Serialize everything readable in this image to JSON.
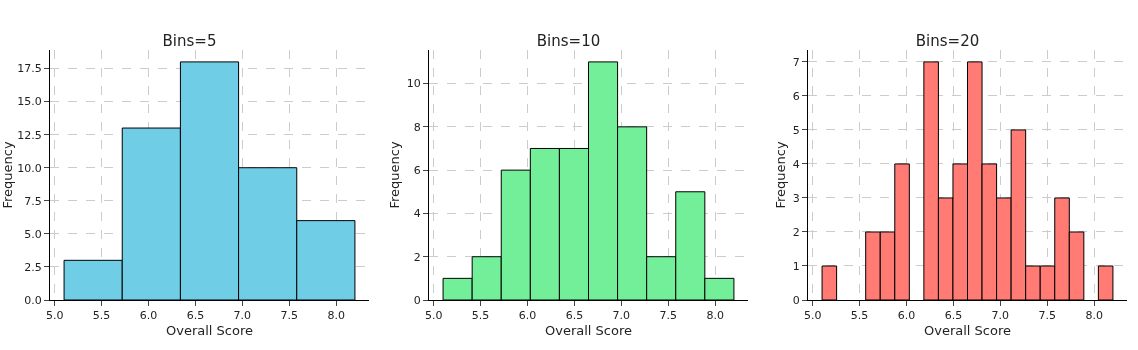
{
  "chart_data": [
    {
      "type": "histogram",
      "title": "Bins=5",
      "xlabel": "Overall Score",
      "ylabel": "Frequency",
      "bins": [
        5.1,
        5.72,
        6.34,
        6.96,
        7.58,
        8.2
      ],
      "values": [
        3,
        13,
        18,
        10,
        6
      ],
      "color": "#70cde6",
      "xlim": [
        4.95,
        8.35
      ],
      "xticks": [
        {
          "value": 5,
          "label": "5.0"
        },
        5.5,
        {
          "value": 6,
          "label": "6.0"
        },
        6.5,
        {
          "value": 7,
          "label": "7.0"
        },
        7.5,
        {
          "value": 8,
          "label": "8.0"
        }
      ],
      "ylim": [
        0,
        18.9
      ],
      "yticks": [
        {
          "value": 0,
          "label": "0.0"
        },
        2.5,
        {
          "value": 5,
          "label": "5.0"
        },
        7.5,
        {
          "value": 10,
          "label": "10.0"
        },
        12.5,
        {
          "value": 15,
          "label": "15.0"
        },
        17.5
      ],
      "grid": true
    },
    {
      "type": "histogram",
      "title": "Bins=10",
      "xlabel": "Overall Score",
      "ylabel": "Frequency",
      "bins": [
        5.1,
        5.41,
        5.72,
        6.03,
        6.34,
        6.65,
        6.96,
        7.27,
        7.58,
        7.89,
        8.2
      ],
      "values": [
        1,
        2,
        6,
        7,
        7,
        11,
        8,
        2,
        5,
        1
      ],
      "color": "#72ef98",
      "xlim": [
        4.95,
        8.35
      ],
      "xticks": [
        {
          "value": 5,
          "label": "5.0"
        },
        5.5,
        {
          "value": 6,
          "label": "6.0"
        },
        6.5,
        {
          "value": 7,
          "label": "7.0"
        },
        7.5,
        {
          "value": 8,
          "label": "8.0"
        }
      ],
      "ylim": [
        0,
        11.55
      ],
      "yticks": [
        0,
        2,
        4,
        6,
        8,
        10
      ],
      "grid": true
    },
    {
      "type": "histogram",
      "title": "Bins=20",
      "xlabel": "Overall Score",
      "ylabel": "Frequency",
      "bins": [
        5.1,
        5.255,
        5.41,
        5.565,
        5.72,
        5.875,
        6.03,
        6.185,
        6.34,
        6.495,
        6.65,
        6.805,
        6.96,
        7.115,
        7.27,
        7.425,
        7.58,
        7.735,
        7.89,
        8.045,
        8.2
      ],
      "values": [
        1,
        0,
        0,
        2,
        2,
        4,
        0,
        7,
        3,
        4,
        7,
        4,
        3,
        5,
        1,
        1,
        3,
        2,
        0,
        1
      ],
      "color": "#ff7b74",
      "xlim": [
        4.95,
        8.35
      ],
      "xticks": [
        {
          "value": 5,
          "label": "5.0"
        },
        5.5,
        {
          "value": 6,
          "label": "6.0"
        },
        6.5,
        {
          "value": 7,
          "label": "7.0"
        },
        7.5,
        {
          "value": 8,
          "label": "8.0"
        }
      ],
      "ylim": [
        0,
        7.35
      ],
      "yticks": [
        0,
        1,
        2,
        3,
        4,
        5,
        6,
        7
      ],
      "grid": true
    }
  ]
}
